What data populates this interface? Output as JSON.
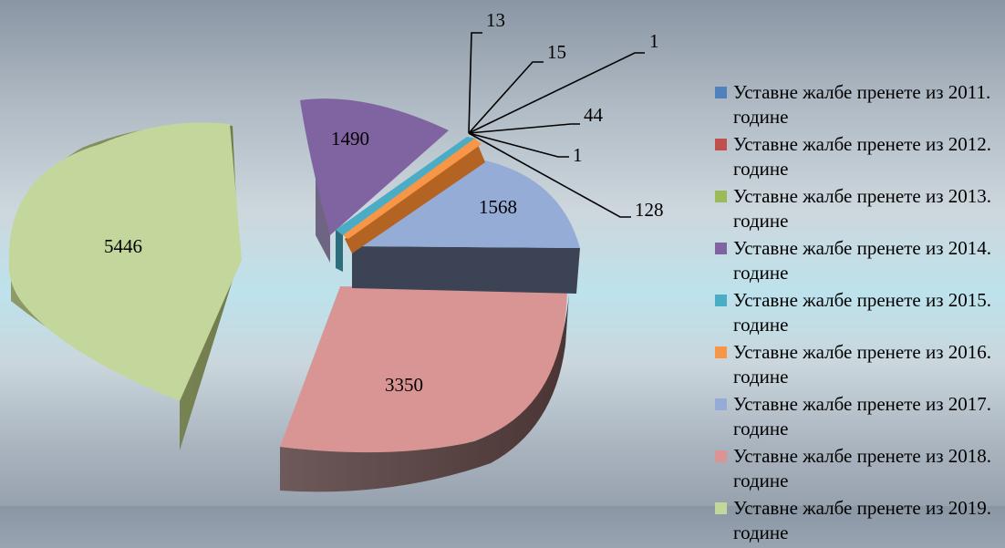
{
  "chart_data": {
    "type": "pie",
    "title": "",
    "categories": [
      "Уставне жалбе пренете из 2011. године",
      "Уставне жалбе пренете из 2012. године",
      "Уставне жалбе пренете из 2013. године",
      "Уставне жалбе пренете из 2014. године",
      "Уставне жалбе пренете из 2015. године",
      "Уставне жалбе пренете из 2016. године",
      "Уставне жалбе пренете из 2017. године",
      "Уставне жалбе пренете из 2018. године",
      "Уставне жалбе пренете из 2019. године"
    ],
    "values": [
      1,
      13,
      15,
      1490,
      44,
      128,
      1568,
      3350,
      5446
    ],
    "colors": [
      "#4f81bd",
      "#c0504d",
      "#9bbb59",
      "#8064a2",
      "#4bacc6",
      "#f79646",
      "#95acd7",
      "#d99594",
      "#c3d69b"
    ],
    "extra_labels": [
      "1"
    ],
    "legend_position": "right",
    "style": "3d-exploded"
  }
}
